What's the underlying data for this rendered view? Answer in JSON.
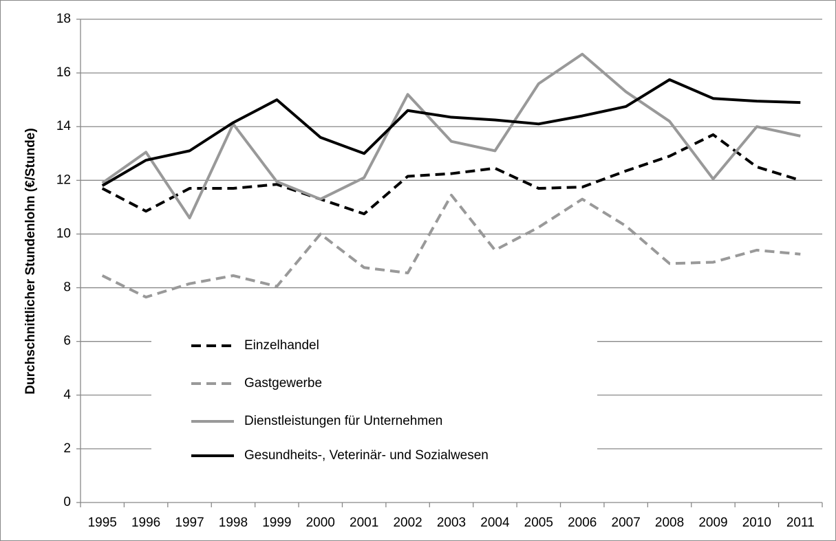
{
  "chart_data": {
    "type": "line",
    "y_label": "Durchschnittlicher Stundenlohn (€/Stunde)",
    "categories": [
      "1995",
      "1996",
      "1997",
      "1998",
      "1999",
      "2000",
      "2001",
      "2002",
      "2003",
      "2004",
      "2005",
      "2006",
      "2007",
      "2008",
      "2009",
      "2010",
      "2011"
    ],
    "series": [
      {
        "name": "Einzelhandel",
        "color": "#000000",
        "dashed": true,
        "values": [
          11.7,
          10.85,
          11.7,
          11.7,
          11.85,
          11.3,
          10.75,
          12.15,
          12.25,
          12.45,
          11.7,
          11.75,
          12.35,
          12.9,
          13.7,
          12.5,
          12.0
        ]
      },
      {
        "name": "Gastgewerbe",
        "color": "#999999",
        "dashed": true,
        "values": [
          8.45,
          7.65,
          8.15,
          8.45,
          8.05,
          10.0,
          8.75,
          8.55,
          11.45,
          9.4,
          10.25,
          11.3,
          10.3,
          8.9,
          8.95,
          9.4,
          9.25
        ]
      },
      {
        "name": "Dienstleistungen für Unternehmen",
        "color": "#999999",
        "dashed": false,
        "values": [
          11.9,
          13.05,
          10.6,
          14.1,
          11.95,
          11.3,
          12.1,
          15.2,
          13.45,
          13.1,
          15.6,
          16.7,
          15.3,
          14.2,
          12.05,
          14.0,
          13.65
        ]
      },
      {
        "name": "Gesundheits-, Veterinär- und Sozialwesen",
        "color": "#000000",
        "dashed": false,
        "values": [
          11.8,
          12.75,
          13.1,
          14.15,
          15.0,
          13.6,
          13.0,
          14.6,
          14.35,
          14.25,
          14.1,
          14.4,
          14.75,
          15.75,
          15.05,
          14.95,
          14.9
        ]
      }
    ],
    "ylim": [
      0,
      18
    ],
    "yticks": [
      0,
      2,
      4,
      6,
      8,
      10,
      12,
      14,
      16,
      18
    ],
    "grid": true
  }
}
